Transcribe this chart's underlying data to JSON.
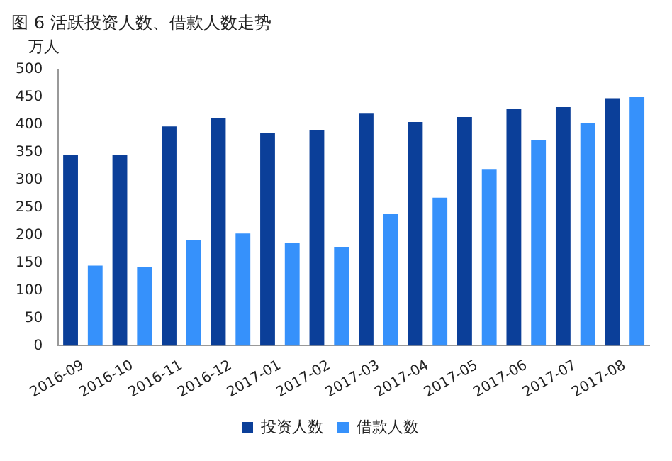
{
  "chart_data": {
    "type": "bar",
    "title": "图 6 活跃投资人数、借款人数走势",
    "ylabel": "万人",
    "categories": [
      "2016-09",
      "2016-10",
      "2016-11",
      "2016-12",
      "2017-01",
      "2017-02",
      "2017-03",
      "2017-04",
      "2017-05",
      "2017-06",
      "2017-07",
      "2017-08"
    ],
    "series": [
      {
        "name": "投资人数",
        "color": "#0b3f99",
        "values": [
          345,
          345,
          397,
          412,
          385,
          390,
          420,
          405,
          414,
          429,
          432,
          448
        ]
      },
      {
        "name": "借款人数",
        "color": "#3691fb",
        "values": [
          145,
          143,
          191,
          203,
          186,
          179,
          238,
          268,
          320,
          372,
          403,
          450
        ]
      }
    ],
    "ylim": [
      0,
      500
    ],
    "yticks": [
      0,
      50,
      100,
      150,
      200,
      250,
      300,
      350,
      400,
      450,
      500
    ],
    "grid": false,
    "legend": "bottom"
  }
}
